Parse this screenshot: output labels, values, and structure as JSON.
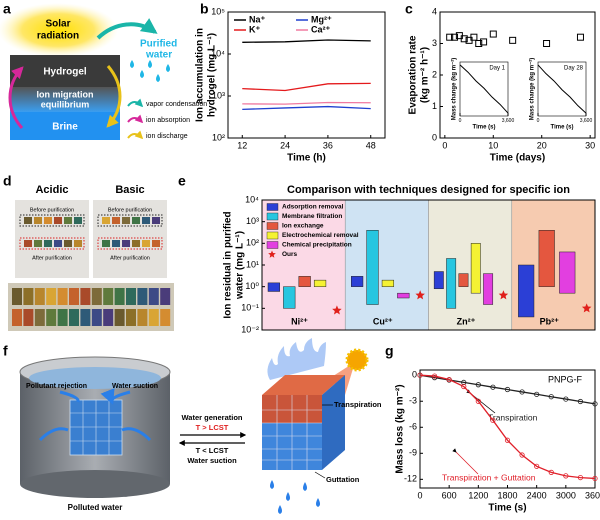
{
  "panel_a": {
    "label": "a",
    "solar_radiation": [
      "Solar",
      "radiation"
    ],
    "hydrogel": "Hydrogel",
    "ion_migration": [
      "Ion migration",
      "equilibrium"
    ],
    "brine": "Brine",
    "purified_water": [
      "Purified",
      "water"
    ],
    "legend": [
      "vapor condensation",
      "ion absorption",
      "ion discharge"
    ]
  },
  "panel_d": {
    "label": "d",
    "papers": [
      {
        "title": "Acidic",
        "before": "Before purification",
        "after": "After purification"
      },
      {
        "title": "Basic",
        "before": "Before purification",
        "after": "After purification"
      }
    ]
  },
  "panel_f": {
    "label": "f",
    "pollutant_rejection": "Pollutant rejection",
    "water_suction_left": "Water suction",
    "polluted_water": "Polluted water",
    "water_generation": "Water generation",
    "t_high": "T > LCST",
    "t_low": "T < LCST",
    "water_suction": "Water suction",
    "transpiration": "Transpiration",
    "guttation": "Guttation"
  },
  "chart_data": [
    {
      "type": "line",
      "panel": "b",
      "ylabel": [
        "Ion accumulation in",
        "hydrogel (mg L⁻¹)"
      ],
      "xlabel": "Time (h)",
      "x": [
        12,
        24,
        36,
        48
      ],
      "xlim": [
        8,
        52
      ],
      "xticks": [
        12,
        24,
        36,
        48
      ],
      "ylim": [
        100,
        100000
      ],
      "log_y": true,
      "yticks": [
        {
          "value": 100,
          "label": "10²"
        },
        {
          "value": 1000,
          "label": "10³"
        },
        {
          "value": 10000,
          "label": "10⁴"
        },
        {
          "value": 100000,
          "label": "10⁵"
        }
      ],
      "legend": "upper left",
      "series": [
        {
          "name": "Na⁺",
          "color": "#000000",
          "values": [
            19000,
            19500,
            21500,
            20500
          ]
        },
        {
          "name": "Mg²⁺",
          "color": "#1f3fcf",
          "values": [
            480,
            520,
            560,
            500
          ]
        },
        {
          "name": "K⁺",
          "color": "#e41a1c",
          "values": [
            1500,
            1350,
            1950,
            2000
          ]
        },
        {
          "name": "Ca²⁺",
          "color": "#f07aa0",
          "values": [
            650,
            640,
            700,
            690
          ]
        }
      ]
    },
    {
      "type": "scatter",
      "panel": "c",
      "ylabel": [
        "Evaporation rate",
        "(kg m⁻² h⁻¹)"
      ],
      "xlabel": "Time (days)",
      "x": [
        1,
        2,
        3,
        4,
        5,
        6,
        7,
        8,
        10,
        14,
        21,
        28
      ],
      "values": [
        3.2,
        3.2,
        3.25,
        3.15,
        3.1,
        3.2,
        3.0,
        3.05,
        3.3,
        3.1,
        3.0,
        3.2
      ],
      "xlim": [
        -1,
        31
      ],
      "xticks": [
        0,
        10,
        20,
        30
      ],
      "ylim": [
        0,
        4
      ],
      "yticks": [
        0,
        1,
        2,
        3,
        4
      ],
      "color": "#000000"
    },
    {
      "type": "line",
      "title": "Day 1",
      "ylabel": [
        "Mass change (kg m⁻²)"
      ],
      "xlabel": "Time (s)",
      "x": [
        0,
        600,
        1200,
        1800,
        2400,
        3000,
        3600
      ],
      "values": [
        0,
        -0.5,
        -1.1,
        -1.6,
        -2.2,
        -2.7,
        -3.3
      ],
      "xlim": [
        0,
        3600
      ],
      "xticks": [
        0,
        {
          "value": 3600,
          "label": "3,600"
        }
      ],
      "ylim": [
        -3.5,
        0.2
      ],
      "color": "#000000"
    },
    {
      "type": "line",
      "title": "Day 28",
      "ylabel": [
        "Mass change (kg m⁻²)"
      ],
      "xlabel": "Time (s)",
      "x": [
        0,
        600,
        1200,
        1800,
        2400,
        3000,
        3600
      ],
      "values": [
        0,
        -0.6,
        -1.1,
        -1.7,
        -2.2,
        -2.8,
        -3.3
      ],
      "xlim": [
        0,
        3600
      ],
      "xticks": [
        0,
        {
          "value": 3600,
          "label": "3,600"
        }
      ],
      "ylim": [
        -3.5,
        0.2
      ],
      "color": "#000000"
    },
    {
      "type": "bar",
      "panel": "e",
      "title": "Comparison with techniques designed for specific ion",
      "ylabel": [
        "Ion residual in purified",
        "water (mg L⁻¹)"
      ],
      "categories": [
        "Ni²⁺",
        "Cu²⁺",
        "Zn²⁺",
        "Pb²⁺"
      ],
      "category_colors": [
        "#fbd9e6",
        "#cfe3f3",
        "#eceadb",
        "#f6cbb0"
      ],
      "ylim": [
        0.01,
        10000
      ],
      "log_y": true,
      "yticks": [
        {
          "value": 0.01,
          "label": "10⁻²"
        },
        {
          "value": 0.1,
          "label": "10⁻¹"
        },
        {
          "value": 1,
          "label": "10⁰"
        },
        {
          "value": 10,
          "label": "10¹"
        },
        {
          "value": 100,
          "label": "10²"
        },
        {
          "value": 1000,
          "label": "10³"
        },
        {
          "value": 10000,
          "label": "10⁴"
        }
      ],
      "legend": "upper left",
      "series": [
        {
          "name": "Adsorption removal",
          "color": "#2b3fd6",
          "low": [
            0.6,
            1,
            0.8,
            0.04
          ],
          "high": [
            1.5,
            3,
            5,
            10
          ]
        },
        {
          "name": "Membrane filtration",
          "color": "#27c6e0",
          "low": [
            0.1,
            0.15,
            0.1,
            null
          ],
          "high": [
            1,
            400,
            20,
            null
          ]
        },
        {
          "name": "Ion exchange",
          "color": "#e4573f",
          "low": [
            1,
            null,
            1,
            1
          ],
          "high": [
            3,
            null,
            4,
            400
          ]
        },
        {
          "name": "Electrochemical removal",
          "color": "#f5f233",
          "low": [
            1,
            1,
            0.5,
            null
          ],
          "high": [
            2,
            2,
            100,
            null
          ]
        },
        {
          "name": "Chemical precipitation",
          "color": "#e23fe0",
          "low": [
            null,
            0.3,
            0.15,
            0.5
          ],
          "high": [
            null,
            0.5,
            4,
            40
          ]
        },
        {
          "name": "Ours",
          "color": "#e0201b",
          "values": [
            0.08,
            0.4,
            0.4,
            0.1
          ]
        }
      ]
    },
    {
      "type": "line",
      "panel": "g",
      "ylabel": [
        "Mass loss (kg m⁻²)"
      ],
      "xlabel": "Time (s)",
      "x": [
        0,
        300,
        600,
        900,
        1200,
        1500,
        1800,
        2100,
        2400,
        2700,
        3000,
        3300,
        3600
      ],
      "xlim": [
        0,
        3600
      ],
      "xticks": [
        0,
        600,
        1200,
        1800,
        2400,
        3000,
        3600
      ],
      "ylim": [
        -13,
        0.6
      ],
      "yticks": [
        0,
        -3,
        -6,
        -9,
        -12
      ],
      "annotations": [
        "PNPG-F"
      ],
      "series": [
        {
          "name": "Transpiration",
          "color": "#222222",
          "values": [
            0,
            -0.28,
            -0.55,
            -0.83,
            -1.1,
            -1.38,
            -1.65,
            -1.93,
            -2.2,
            -2.48,
            -2.75,
            -3.03,
            -3.3
          ]
        },
        {
          "name": "Transpiration + Guttation",
          "color": "#e0202a",
          "values": [
            0,
            -0.1,
            -0.5,
            -1.3,
            -3.0,
            -5.2,
            -7.5,
            -9.2,
            -10.5,
            -11.2,
            -11.6,
            -11.8,
            -11.9
          ]
        }
      ]
    }
  ]
}
